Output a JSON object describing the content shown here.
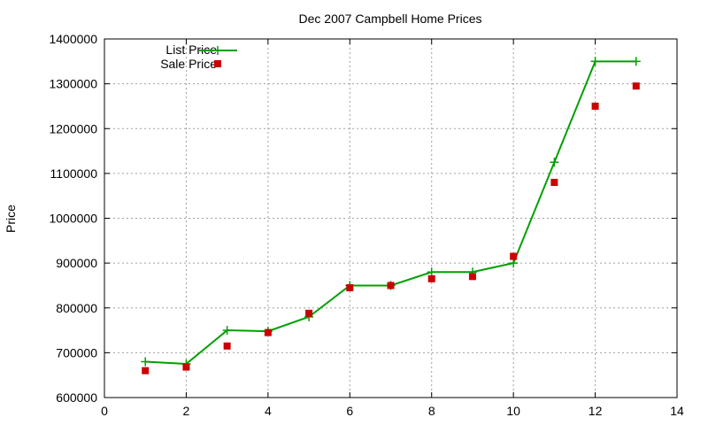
{
  "chart_data": {
    "type": "line",
    "title": "Dec 2007 Campbell Home Prices",
    "xlabel": "",
    "ylabel": "Price",
    "xlim": [
      0,
      14
    ],
    "ylim": [
      600000,
      1400000
    ],
    "x_ticks": [
      "0",
      "2",
      "4",
      "6",
      "8",
      "10",
      "12",
      "14"
    ],
    "y_ticks": [
      "600000",
      "700000",
      "800000",
      "900000",
      "1000000",
      "1100000",
      "1200000",
      "1300000",
      "1400000"
    ],
    "grid": true,
    "legend_position": "top-left",
    "series": [
      {
        "name": "List Price",
        "style": "line-with-plus-markers",
        "color": "#00a000",
        "x": [
          1,
          2,
          3,
          4,
          5,
          6,
          7,
          8,
          9,
          10,
          11,
          12,
          13
        ],
        "y": [
          680000,
          675000,
          750000,
          748000,
          780000,
          850000,
          850000,
          880000,
          880000,
          900000,
          1125000,
          1350000,
          1350000
        ]
      },
      {
        "name": "Sale Price",
        "style": "square-markers",
        "color": "#cc0000",
        "x": [
          1,
          2,
          3,
          4,
          5,
          6,
          7,
          8,
          9,
          10,
          11,
          12,
          13
        ],
        "y": [
          660000,
          668000,
          715000,
          745000,
          788000,
          845000,
          850000,
          865000,
          870000,
          915000,
          1080000,
          1250000,
          1295000
        ]
      }
    ]
  }
}
